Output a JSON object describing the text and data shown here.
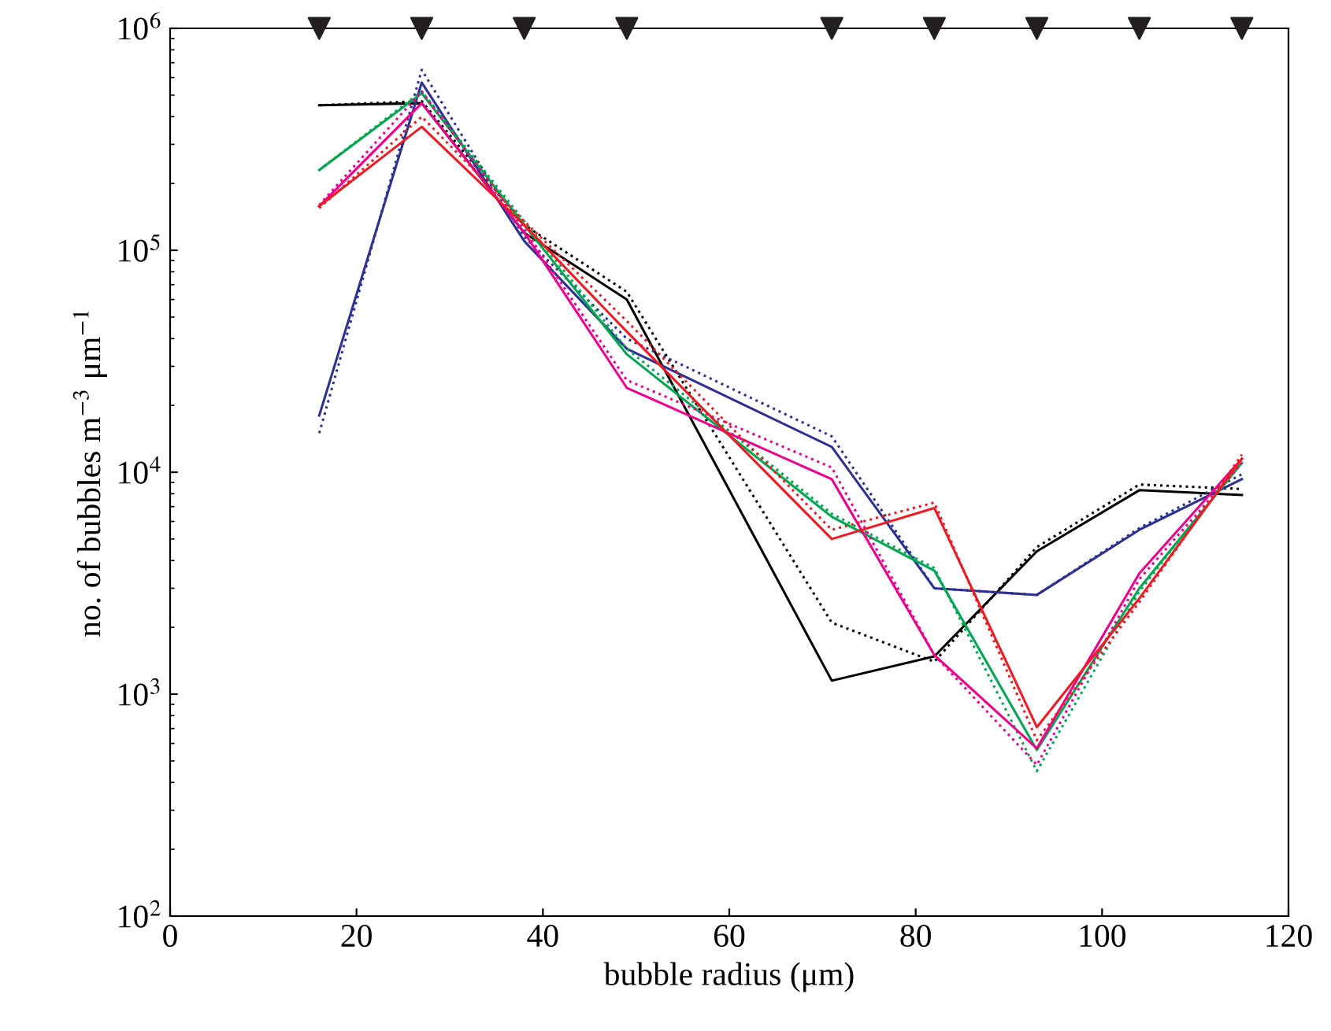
{
  "chart_data": {
    "type": "line",
    "xlabel": "bubble radius (μm)",
    "ylabel": "no. of bubbles m$^{−3}$ μm$^{−1}$",
    "x": [
      16,
      27,
      38,
      49,
      71,
      82,
      93,
      104,
      115
    ],
    "xlim": [
      0,
      120
    ],
    "xticks": [
      0,
      20,
      40,
      60,
      80,
      100,
      120
    ],
    "log": "y",
    "ylim": [
      100,
      1000000
    ],
    "yticks": [
      {
        "value": 100,
        "label": "10$^{2}$"
      },
      {
        "value": 1000,
        "label": "10$^{3}$"
      },
      {
        "value": 10000,
        "label": "10$^{4}$"
      },
      {
        "value": 100000,
        "label": "10$^{5}$"
      },
      {
        "value": 1000000,
        "label": "10$^{6}$"
      }
    ],
    "grid": false,
    "legend": false,
    "marker": "none",
    "series": [
      {
        "color": "#000000",
        "line_style": "solid",
        "values": [
          450000,
          460000,
          120000,
          60000,
          1150,
          1480,
          4400,
          8300,
          7900
        ]
      },
      {
        "color": "#000000",
        "line_style": "dotted",
        "values": [
          450000,
          470000,
          130000,
          65000,
          2100,
          1400,
          4600,
          8800,
          8400
        ]
      },
      {
        "color": "#2e3192",
        "line_style": "solid",
        "values": [
          18000,
          570000,
          110000,
          36000,
          13000,
          3000,
          2800,
          5500,
          9300
        ]
      },
      {
        "color": "#2e3192",
        "line_style": "dotted",
        "values": [
          15000,
          650000,
          115000,
          40000,
          14500,
          3000,
          2800,
          5600,
          9800
        ]
      },
      {
        "color": "#00a651",
        "line_style": "solid",
        "values": [
          230000,
          510000,
          130000,
          34000,
          6300,
          3600,
          560,
          3000,
          11000
        ]
      },
      {
        "color": "#00a651",
        "line_style": "dotted",
        "values": [
          230000,
          520000,
          135000,
          36000,
          6500,
          3700,
          450,
          2900,
          11500
        ]
      },
      {
        "color": "#ec008c",
        "line_style": "solid",
        "values": [
          158000,
          460000,
          120000,
          24000,
          9300,
          1500,
          570,
          3500,
          11500
        ]
      },
      {
        "color": "#ec008c",
        "line_style": "dotted",
        "values": [
          160000,
          520000,
          125000,
          26000,
          10500,
          1500,
          480,
          3300,
          11000
        ]
      },
      {
        "color": "#ed1c24",
        "line_style": "solid",
        "values": [
          158000,
          360000,
          130000,
          43000,
          5000,
          6900,
          710,
          2700,
          11500
        ]
      },
      {
        "color": "#ed1c24",
        "line_style": "dotted",
        "values": [
          155000,
          400000,
          135000,
          48000,
          5500,
          7300,
          620,
          2600,
          12000
        ]
      },
      {
        "type": "scatter",
        "color": "#231f20",
        "marker": "triangle",
        "values": [
          1000000,
          1000000,
          1000000,
          1000000,
          1000000,
          1000000,
          1000000,
          1000000,
          1000000
        ]
      }
    ]
  }
}
